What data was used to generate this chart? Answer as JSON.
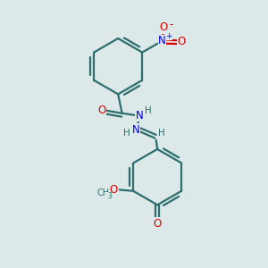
{
  "bg_color": "#dde8e8",
  "bond_color": "#2d6e6e",
  "N_color": "#0000ee",
  "O_color": "#dd0000",
  "lw": 1.6,
  "dbo": 0.013,
  "figsize": [
    3.0,
    3.0
  ],
  "dpi": 100,
  "xlim": [
    0.0,
    1.0
  ],
  "ylim": [
    0.0,
    1.0
  ]
}
